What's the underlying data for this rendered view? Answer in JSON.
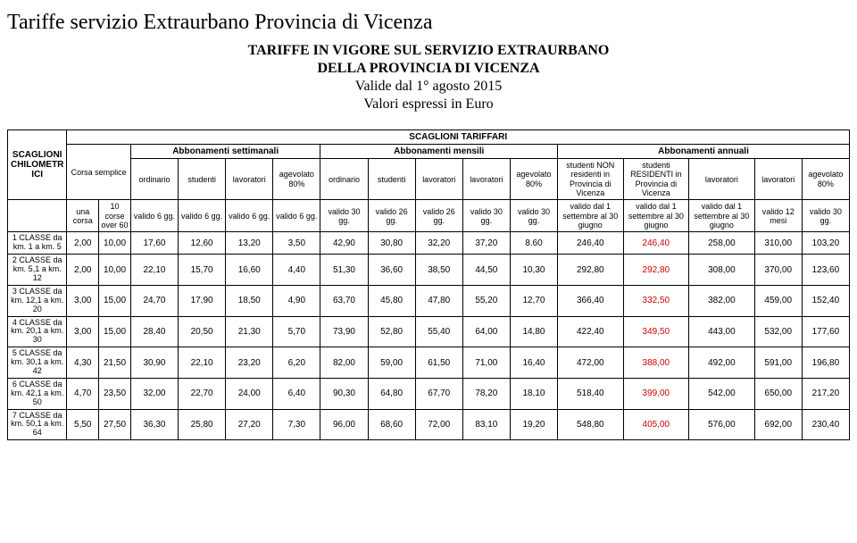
{
  "title": "Tariffe servizio Extraurbano Provincia di Vicenza",
  "subtitle": {
    "l1": "TARIFFE IN VIGORE SUL SERVIZIO EXTRAURBANO",
    "l2": "DELLA PROVINCIA DI VICENZA",
    "l3": "Valide dal 1° agosto 2015",
    "l4": "Valori espressi in Euro"
  },
  "headers": {
    "leftGroup": "SCAGLIONI CHILOMETRICI",
    "mainTop": "SCAGLIONI TARIFFARI",
    "corsaSemplice": "Corsa semplice",
    "settimanali": "Abbonamenti settimanali",
    "mensili": "Abbonamenti mensili",
    "annuali": "Abbonamenti annuali",
    "ordinario": "ordinario",
    "studenti": "studenti",
    "lavoratori": "lavoratori",
    "agevolato": "agevolato 80%",
    "studNonRes": "studenti NON residenti in Provincia di Vicenza",
    "studRes": "studenti RESIDENTI in Provincia di Vicenza",
    "unaCorsa": "una corsa",
    "corse60": "10 corse over 60",
    "valido6": "valido 6 gg.",
    "valido30": "valido 30 gg.",
    "valido26": "valido 26 gg.",
    "validoSetGiu": "valido dal 1 settembre al 30 giugno",
    "valido12m": "valido 12 mesi"
  },
  "rows": [
    {
      "label": "1 CLASSE da km. 1 a km. 5",
      "v": [
        "2,00",
        "10,00",
        "17,60",
        "12,60",
        "13,20",
        "3,50",
        "42,90",
        "30,80",
        "32,20",
        "37,20",
        "8.60",
        "246,40",
        "246,40",
        "258,00",
        "310,00",
        "103,20"
      ],
      "redCols": [
        12
      ]
    },
    {
      "label": "2 CLASSE da km. 5,1 a km. 12",
      "v": [
        "2,00",
        "10,00",
        "22,10",
        "15,70",
        "16,60",
        "4,40",
        "51,30",
        "36,60",
        "38,50",
        "44,50",
        "10,30",
        "292,80",
        "292,80",
        "308,00",
        "370,00",
        "123,60"
      ],
      "redCols": [
        12
      ]
    },
    {
      "label": "3 CLASSE da km. 12,1 a km. 20",
      "v": [
        "3,00",
        "15,00",
        "24,70",
        "17,90",
        "18,50",
        "4,90",
        "63,70",
        "45,80",
        "47,80",
        "55,20",
        "12,70",
        "366,40",
        "332,50",
        "382,00",
        "459,00",
        "152,40"
      ],
      "redCols": [
        12
      ]
    },
    {
      "label": "4 CLASSE da km. 20,1 a km. 30",
      "v": [
        "3,00",
        "15,00",
        "28,40",
        "20,50",
        "21,30",
        "5,70",
        "73,90",
        "52,80",
        "55,40",
        "64,00",
        "14,80",
        "422,40",
        "349,50",
        "443,00",
        "532,00",
        "177,60"
      ],
      "redCols": [
        12
      ]
    },
    {
      "label": "5 CLASSE da km. 30,1 a km. 42",
      "v": [
        "4,30",
        "21,50",
        "30,90",
        "22,10",
        "23,20",
        "6,20",
        "82,00",
        "59,00",
        "61,50",
        "71,00",
        "16,40",
        "472,00",
        "388,00",
        "492,00",
        "591,00",
        "196,80"
      ],
      "redCols": [
        12
      ]
    },
    {
      "label": "6 CLASSE da km. 42,1 a km. 50",
      "v": [
        "4,70",
        "23,50",
        "32,00",
        "22,70",
        "24,00",
        "6,40",
        "90,30",
        "64,80",
        "67,70",
        "78,20",
        "18,10",
        "518,40",
        "399,00",
        "542,00",
        "650,00",
        "217,20"
      ],
      "redCols": [
        12
      ]
    },
    {
      "label": "7 CLASSE da km. 50,1 a km. 64",
      "v": [
        "5,50",
        "27,50",
        "36,30",
        "25,80",
        "27,20",
        "7,30",
        "96,00",
        "68,60",
        "72,00",
        "83,10",
        "19,20",
        "548,80",
        "405,00",
        "576,00",
        "692,00",
        "230,40"
      ],
      "redCols": [
        12
      ]
    }
  ],
  "style": {
    "redColor": "#d00000",
    "borderColor": "#000000",
    "background": "#ffffff"
  }
}
